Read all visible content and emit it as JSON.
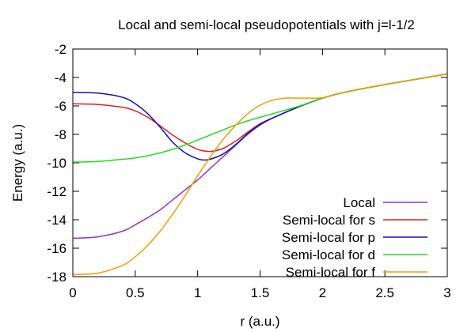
{
  "chart_data": {
    "type": "line",
    "title": "Local and semi-local pseudopotentials with j=l-1/2",
    "xlabel": "r (a.u.)",
    "ylabel": "Energy (a.u.)",
    "xlim": [
      0,
      3
    ],
    "ylim": [
      -18,
      -2
    ],
    "xticks": [
      0,
      0.5,
      1,
      1.5,
      2,
      2.5,
      3
    ],
    "xtick_labels": [
      "0",
      "0.5",
      "1",
      "1.5",
      "2",
      "2.5",
      "3"
    ],
    "yticks": [
      -18,
      -16,
      -14,
      -12,
      -10,
      -8,
      -6,
      -4,
      -2
    ],
    "ytick_labels": [
      "-18",
      "-16",
      "-14",
      "-12",
      "-10",
      "-8",
      "-6",
      "-4",
      "-2"
    ],
    "grid": false,
    "legend_position": "bottom-right",
    "series": [
      {
        "name": "Local",
        "color": "#9b30c8",
        "x": [
          0,
          0.2,
          0.4,
          0.5,
          0.6,
          0.7,
          0.8,
          0.9,
          1.0,
          1.1,
          1.2,
          1.3,
          1.4,
          1.5,
          1.6,
          1.8,
          2.0,
          2.2,
          2.5,
          2.8,
          3.0
        ],
        "y": [
          -15.3,
          -15.2,
          -14.8,
          -14.35,
          -13.85,
          -13.3,
          -12.6,
          -11.9,
          -11.2,
          -10.4,
          -9.6,
          -8.8,
          -8.0,
          -7.35,
          -6.85,
          -6.1,
          -5.45,
          -5.0,
          -4.5,
          -4.05,
          -3.75
        ]
      },
      {
        "name": "Semi-local for s",
        "color": "#e02020",
        "x": [
          0,
          0.2,
          0.4,
          0.5,
          0.6,
          0.7,
          0.8,
          0.9,
          1.0,
          1.1,
          1.2,
          1.3,
          1.4,
          1.5,
          1.6,
          1.8,
          2.0,
          2.2,
          2.5,
          2.8,
          3.0
        ],
        "y": [
          -5.85,
          -5.9,
          -6.1,
          -6.35,
          -6.8,
          -7.4,
          -8.05,
          -8.6,
          -9.05,
          -9.2,
          -9.0,
          -8.5,
          -7.85,
          -7.25,
          -6.85,
          -6.1,
          -5.45,
          -5.0,
          -4.5,
          -4.05,
          -3.75
        ]
      },
      {
        "name": "Semi-local for p",
        "color": "#1010c0",
        "x": [
          0,
          0.2,
          0.4,
          0.5,
          0.6,
          0.7,
          0.8,
          0.9,
          1.0,
          1.05,
          1.1,
          1.2,
          1.3,
          1.4,
          1.5,
          1.6,
          1.8,
          2.0,
          2.2,
          2.5,
          2.8,
          3.0
        ],
        "y": [
          -5.05,
          -5.1,
          -5.4,
          -5.85,
          -6.55,
          -7.5,
          -8.55,
          -9.3,
          -9.72,
          -9.8,
          -9.75,
          -9.4,
          -8.75,
          -7.95,
          -7.3,
          -6.85,
          -6.1,
          -5.45,
          -5.0,
          -4.5,
          -4.05,
          -3.75
        ]
      },
      {
        "name": "Semi-local for d",
        "color": "#20e020",
        "x": [
          0,
          0.2,
          0.4,
          0.5,
          0.6,
          0.7,
          0.8,
          0.9,
          1.0,
          1.1,
          1.2,
          1.3,
          1.4,
          1.5,
          1.6,
          1.8,
          2.0,
          2.2,
          2.5,
          2.8,
          3.0
        ],
        "y": [
          -9.95,
          -9.9,
          -9.75,
          -9.65,
          -9.5,
          -9.3,
          -9.05,
          -8.75,
          -8.4,
          -8.05,
          -7.7,
          -7.35,
          -7.05,
          -6.8,
          -6.55,
          -6.05,
          -5.45,
          -5.0,
          -4.5,
          -4.05,
          -3.75
        ]
      },
      {
        "name": "Semi-local for f",
        "color": "#f0a000",
        "x": [
          0,
          0.2,
          0.4,
          0.5,
          0.6,
          0.7,
          0.8,
          0.9,
          1.0,
          1.1,
          1.2,
          1.3,
          1.4,
          1.5,
          1.6,
          1.7,
          1.8,
          1.9,
          2.0,
          2.2,
          2.5,
          2.8,
          3.0
        ],
        "y": [
          -17.85,
          -17.75,
          -17.2,
          -16.6,
          -15.8,
          -14.8,
          -13.6,
          -12.3,
          -10.9,
          -9.6,
          -8.4,
          -7.4,
          -6.55,
          -5.95,
          -5.6,
          -5.45,
          -5.45,
          -5.45,
          -5.42,
          -5.0,
          -4.5,
          -4.05,
          -3.75
        ]
      }
    ]
  }
}
